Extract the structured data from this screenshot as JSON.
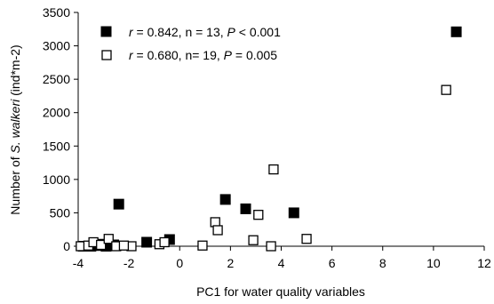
{
  "chart_data": {
    "type": "scatter",
    "xlabel": "PC1 for water quality variables",
    "ylabel_parts": {
      "prefix": "Number of ",
      "italic": "S. walkeri",
      "suffix": " (ind*m-2)"
    },
    "xlim": [
      -4,
      12
    ],
    "ylim": [
      0,
      3500
    ],
    "x_ticks": [
      -4,
      -2,
      0,
      2,
      4,
      6,
      8,
      10,
      12
    ],
    "y_ticks": [
      0,
      500,
      1000,
      1500,
      2000,
      2500,
      3000,
      3500
    ],
    "grid": false,
    "legend_position": "top-left",
    "series": [
      {
        "marker": "filled-square",
        "color": "#000000",
        "legend": {
          "r_label": "r",
          "r_text": " = 0.842, n = 13, ",
          "p_label": "P",
          "p_text": " < 0.001"
        },
        "points": [
          {
            "x": -3.8,
            "y": 0
          },
          {
            "x": -3.5,
            "y": 0
          },
          {
            "x": -3.2,
            "y": 10
          },
          {
            "x": -2.9,
            "y": 0
          },
          {
            "x": -2.6,
            "y": 20
          },
          {
            "x": -2.4,
            "y": 630
          },
          {
            "x": -1.3,
            "y": 60
          },
          {
            "x": -0.4,
            "y": 100
          },
          {
            "x": 1.8,
            "y": 700
          },
          {
            "x": 2.6,
            "y": 560
          },
          {
            "x": 4.5,
            "y": 500
          },
          {
            "x": 10.9,
            "y": 3210
          },
          {
            "x": -3.0,
            "y": 30
          }
        ]
      },
      {
        "marker": "open-square",
        "color": "#000000",
        "legend": {
          "r_label": "r",
          "r_text": " = 0.680, n= 19, ",
          "p_label": "P",
          "p_text": " = 0.005"
        },
        "points": [
          {
            "x": -3.9,
            "y": 0
          },
          {
            "x": -3.6,
            "y": 10
          },
          {
            "x": -3.4,
            "y": 60
          },
          {
            "x": -3.1,
            "y": 20
          },
          {
            "x": -2.8,
            "y": 110
          },
          {
            "x": -2.5,
            "y": 0
          },
          {
            "x": -1.9,
            "y": 0
          },
          {
            "x": -0.8,
            "y": 30
          },
          {
            "x": -0.6,
            "y": 60
          },
          {
            "x": 0.9,
            "y": 10
          },
          {
            "x": 1.4,
            "y": 360
          },
          {
            "x": 1.5,
            "y": 240
          },
          {
            "x": 2.9,
            "y": 90
          },
          {
            "x": 3.1,
            "y": 470
          },
          {
            "x": 3.6,
            "y": 0
          },
          {
            "x": 3.7,
            "y": 1150
          },
          {
            "x": 5.0,
            "y": 110
          },
          {
            "x": 10.5,
            "y": 2340
          },
          {
            "x": -2.2,
            "y": 10
          }
        ]
      }
    ]
  }
}
